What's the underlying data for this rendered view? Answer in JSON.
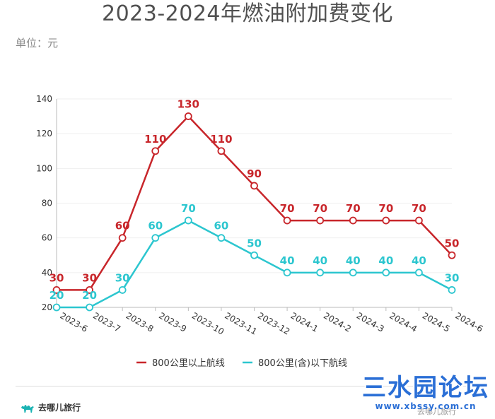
{
  "chart_data": {
    "type": "line",
    "title": "2023-2024年燃油附加费变化",
    "unit_label": "单位：元",
    "categories": [
      "2023-6",
      "2023-7",
      "2023-8",
      "2023-9",
      "2023-10",
      "2023-11",
      "2023-12",
      "2024-1",
      "2024-2",
      "2024-3",
      "2024-4",
      "2024-5",
      "2024-6"
    ],
    "y_ticks": [
      20,
      40,
      60,
      80,
      100,
      120,
      140
    ],
    "ylim": [
      20,
      140
    ],
    "grid": true,
    "legend_position": "bottom",
    "series": [
      {
        "name": "800公里以上航线",
        "color": "#c8262b",
        "values": [
          30,
          30,
          60,
          110,
          130,
          110,
          90,
          70,
          70,
          70,
          70,
          70,
          50
        ]
      },
      {
        "name": "800公里(含)以下航线",
        "color": "#2cc6cf",
        "values": [
          20,
          20,
          30,
          60,
          70,
          60,
          50,
          40,
          40,
          40,
          40,
          40,
          30
        ]
      }
    ]
  },
  "footer": {
    "brand": "去哪儿旅行",
    "brand_icon": "camel-icon",
    "source": "去哪儿旅行"
  },
  "watermark": {
    "text": "三水园论坛",
    "url": "www.xbssy.com.cn",
    "color": "#2b6fd6"
  }
}
